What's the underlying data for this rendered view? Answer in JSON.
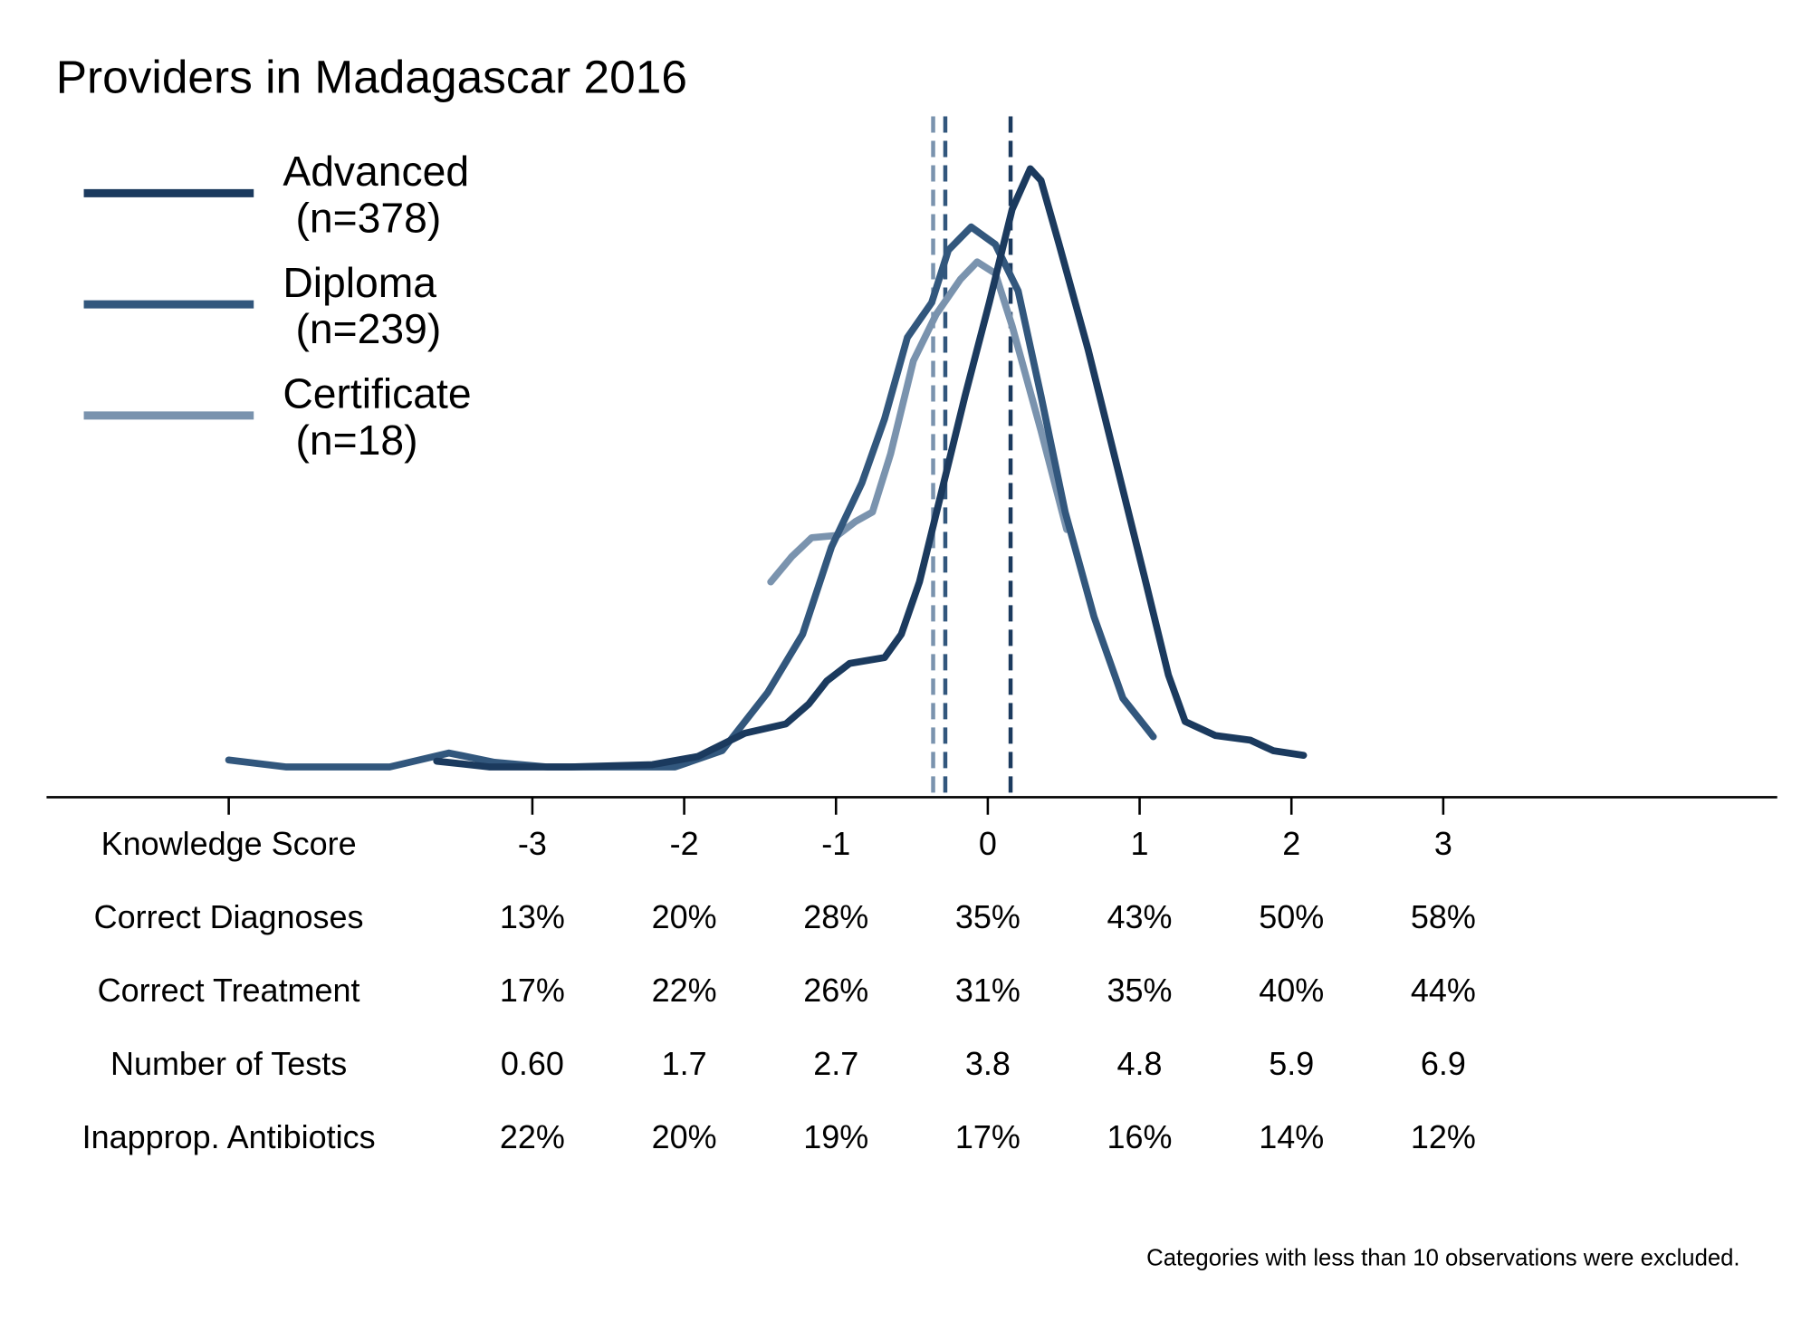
{
  "chart_data": {
    "type": "line",
    "title": "Providers in Madagascar 2016",
    "note": "Categories with less than 10 observations were excluded.",
    "xlim": [
      -6.2,
      5.2
    ],
    "ylim": [
      0,
      0.6
    ],
    "xticks": [
      {
        "value": -5,
        "label": "Knowledge Score"
      },
      -3,
      -2,
      -1,
      0,
      1,
      2,
      3
    ],
    "legend": "top-left",
    "series": [
      {
        "name": "Advanced",
        "n_label": "(n=378)",
        "color": "#1b3a5e",
        "mean": 0.15,
        "x": [
          -3.63,
          -3.28,
          -2.75,
          -2.21,
          -1.91,
          -1.6,
          -1.33,
          -1.18,
          -1.06,
          -0.91,
          -0.68,
          -0.57,
          -0.45,
          -0.3,
          -0.15,
          0.01,
          0.16,
          0.28,
          0.35,
          0.47,
          0.66,
          0.85,
          1.04,
          1.19,
          1.3,
          1.5,
          1.73,
          1.88,
          2.08
        ],
        "values": [
          0.031,
          0.026,
          0.026,
          0.028,
          0.035,
          0.055,
          0.063,
          0.08,
          0.1,
          0.115,
          0.12,
          0.14,
          0.185,
          0.265,
          0.345,
          0.425,
          0.505,
          0.54,
          0.53,
          0.475,
          0.385,
          0.285,
          0.185,
          0.105,
          0.065,
          0.053,
          0.049,
          0.04,
          0.036
        ]
      },
      {
        "name": "Diploma",
        "n_label": "(n=239)",
        "color": "#32577d",
        "mean": -0.28,
        "x": [
          -5.0,
          -4.62,
          -3.94,
          -3.55,
          -3.25,
          -2.9,
          -2.06,
          -1.75,
          -1.45,
          -1.22,
          -1.03,
          -0.83,
          -0.68,
          -0.53,
          -0.37,
          -0.26,
          -0.11,
          0.05,
          0.2,
          0.35,
          0.51,
          0.7,
          0.89,
          1.09
        ],
        "values": [
          0.032,
          0.026,
          0.026,
          0.038,
          0.03,
          0.026,
          0.026,
          0.04,
          0.09,
          0.14,
          0.215,
          0.27,
          0.325,
          0.395,
          0.425,
          0.47,
          0.49,
          0.475,
          0.435,
          0.345,
          0.245,
          0.155,
          0.085,
          0.052
        ]
      },
      {
        "name": "Certificate",
        "n_label": "(n=18)",
        "color": "#7a93ae",
        "mean": -0.36,
        "x": [
          -1.43,
          -1.29,
          -1.16,
          -0.99,
          -0.87,
          -0.76,
          -0.64,
          -0.49,
          -0.34,
          -0.18,
          -0.07,
          0.05,
          0.16,
          0.35,
          0.52
        ],
        "values": [
          0.185,
          0.207,
          0.223,
          0.225,
          0.237,
          0.245,
          0.295,
          0.375,
          0.415,
          0.445,
          0.46,
          0.45,
          0.405,
          0.315,
          0.23
        ]
      }
    ],
    "table": [
      {
        "label": "Correct Diagnoses",
        "cells": [
          "13%",
          "20%",
          "28%",
          "35%",
          "43%",
          "50%",
          "58%"
        ]
      },
      {
        "label": "Correct Treatment",
        "cells": [
          "17%",
          "22%",
          "26%",
          "31%",
          "35%",
          "40%",
          "44%"
        ]
      },
      {
        "label": "Number of Tests",
        "cells": [
          "0.60",
          "1.7",
          "2.7",
          "3.8",
          "4.8",
          "5.9",
          "6.9"
        ]
      },
      {
        "label": "Inapprop. Antibiotics",
        "cells": [
          "22%",
          "20%",
          "19%",
          "17%",
          "16%",
          "14%",
          "12%"
        ]
      }
    ]
  }
}
